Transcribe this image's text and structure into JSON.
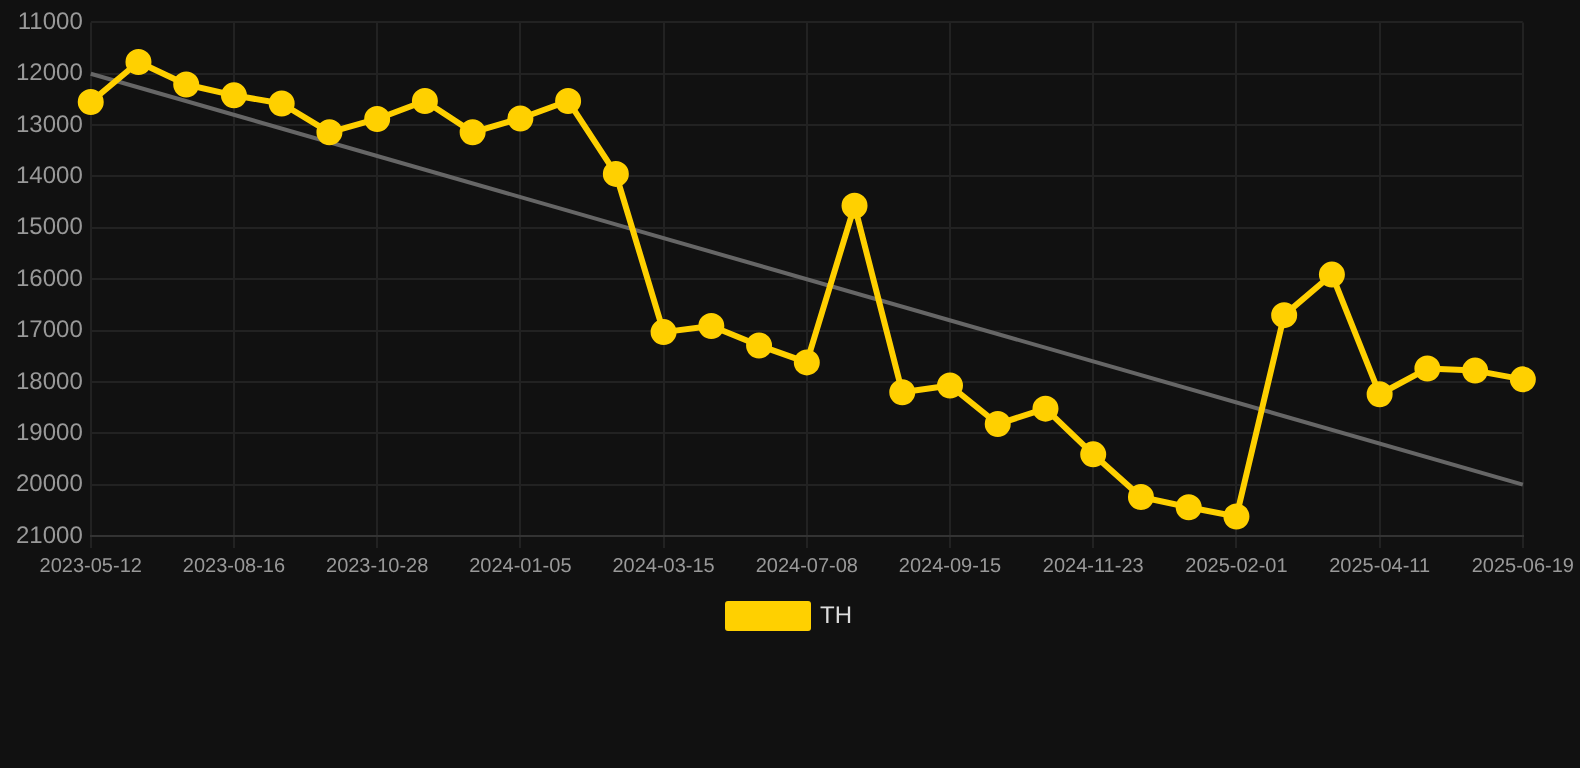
{
  "chart_data": {
    "type": "line",
    "categories": [
      "2023-05-12",
      null,
      null,
      "2023-08-16",
      null,
      null,
      "2023-10-28",
      null,
      null,
      "2024-01-05",
      null,
      null,
      "2024-03-15",
      null,
      null,
      "2024-07-08",
      null,
      null,
      "2024-09-15",
      null,
      null,
      "2024-11-23",
      null,
      null,
      "2025-02-01",
      null,
      null,
      "2025-04-11",
      null,
      null,
      "2025-06-19"
    ],
    "series": [
      {
        "name": "TH",
        "color": "#ffd000",
        "marker": "circle",
        "values": [
          12550,
          11770,
          12210,
          12420,
          12580,
          13140,
          12880,
          12530,
          13140,
          12870,
          12530,
          13950,
          17030,
          16910,
          17290,
          17620,
          14570,
          18200,
          18070,
          18820,
          18520,
          19410,
          20240,
          20440,
          20620,
          16700,
          15910,
          18240,
          17740,
          17780,
          17950
        ]
      },
      {
        "type": "line",
        "color": "#666666",
        "marker": "none",
        "values": [
          12000,
          null,
          null,
          null,
          null,
          null,
          null,
          null,
          null,
          null,
          null,
          null,
          null,
          null,
          null,
          null,
          null,
          null,
          null,
          null,
          null,
          null,
          null,
          null,
          null,
          null,
          null,
          null,
          null,
          null,
          20000
        ]
      }
    ],
    "ylim": [
      21000,
      11000
    ],
    "yticks": [
      11000,
      12000,
      13000,
      14000,
      15000,
      16000,
      17000,
      18000,
      19000,
      20000,
      21000
    ],
    "grid": true,
    "legend": "bottom"
  }
}
